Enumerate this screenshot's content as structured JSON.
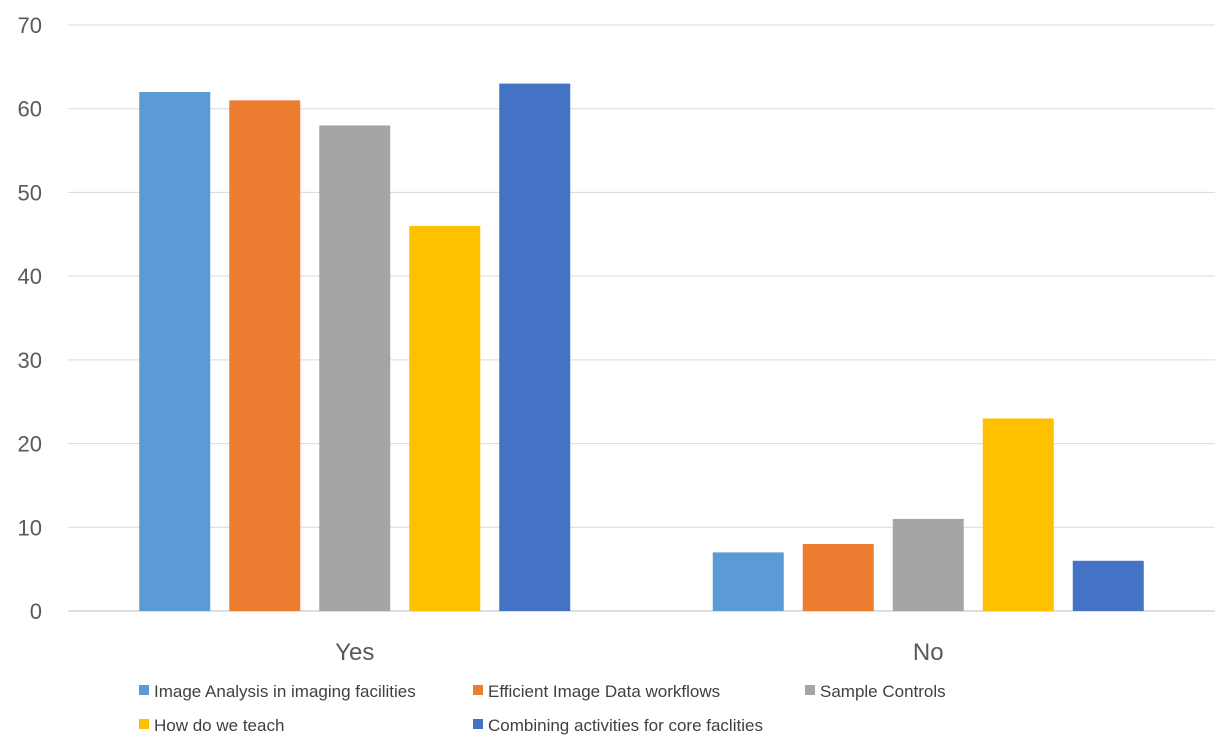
{
  "chart_data": {
    "type": "bar",
    "categories": [
      "Yes",
      "No"
    ],
    "series": [
      {
        "name": "Image Analysis in imaging facilities",
        "color": "#5B9BD5",
        "values": [
          62,
          7
        ]
      },
      {
        "name": "Efficient Image Data workflows",
        "color": "#ED7D31",
        "values": [
          61,
          8
        ]
      },
      {
        "name": "Sample Controls",
        "color": "#A5A5A5",
        "values": [
          58,
          11
        ]
      },
      {
        "name": "How do we teach",
        "color": "#FFC000",
        "values": [
          46,
          23
        ]
      },
      {
        "name": "Combining activities for core faclities",
        "color": "#4472C4",
        "values": [
          63,
          6
        ]
      }
    ],
    "title": "",
    "xlabel": "",
    "ylabel": "",
    "ylim": [
      0,
      70
    ],
    "yticks": [
      "0",
      "10",
      "20",
      "30",
      "40",
      "50",
      "60",
      "70"
    ],
    "grid": true,
    "legend_position": "bottom"
  }
}
